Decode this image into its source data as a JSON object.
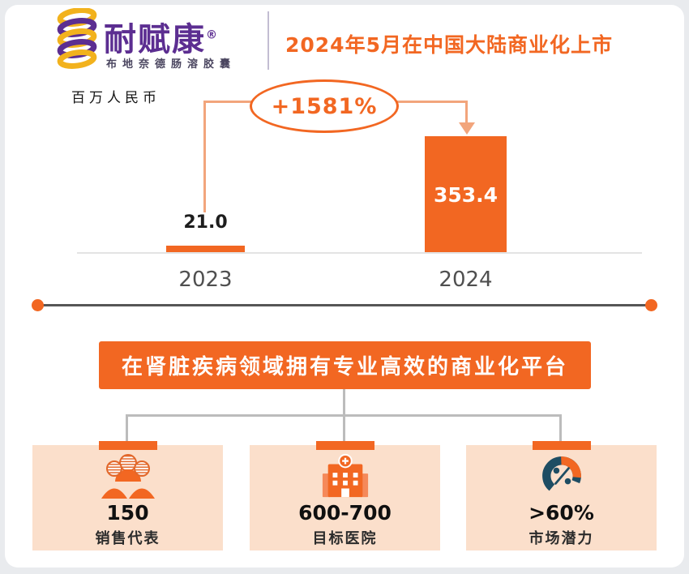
{
  "colors": {
    "accent": "#F26722",
    "peach": "#FBDFCB",
    "purple": "#5C2E91",
    "yellow": "#F2B21D",
    "gauge_dark": "#1E4D63"
  },
  "header": {
    "brand_name": "耐赋康",
    "reg_mark": "®",
    "brand_subtitle": "布地奈德肠溶胶囊",
    "title": "2024年5月在中国大陆商业化上市"
  },
  "chart_data": {
    "type": "bar",
    "unit_label": "百万人民币",
    "categories": [
      "2023",
      "2024"
    ],
    "values": [
      21.0,
      353.4
    ],
    "value_labels": [
      "21.0",
      "353.4"
    ],
    "growth_label": "+1581%",
    "bar_color": "#F26722",
    "ylim": [
      0,
      400
    ],
    "grid": false,
    "legend": false
  },
  "platform": {
    "banner": "在肾脏疾病领域拥有专业高效的商业化平台",
    "stats": [
      {
        "icon": "sales-team-icon",
        "value": "150",
        "label": "销售代表"
      },
      {
        "icon": "hospital-icon",
        "value": "600-700",
        "label": "目标医院"
      },
      {
        "icon": "gauge-icon",
        "value": ">60%",
        "label": "市场潜力"
      }
    ]
  }
}
